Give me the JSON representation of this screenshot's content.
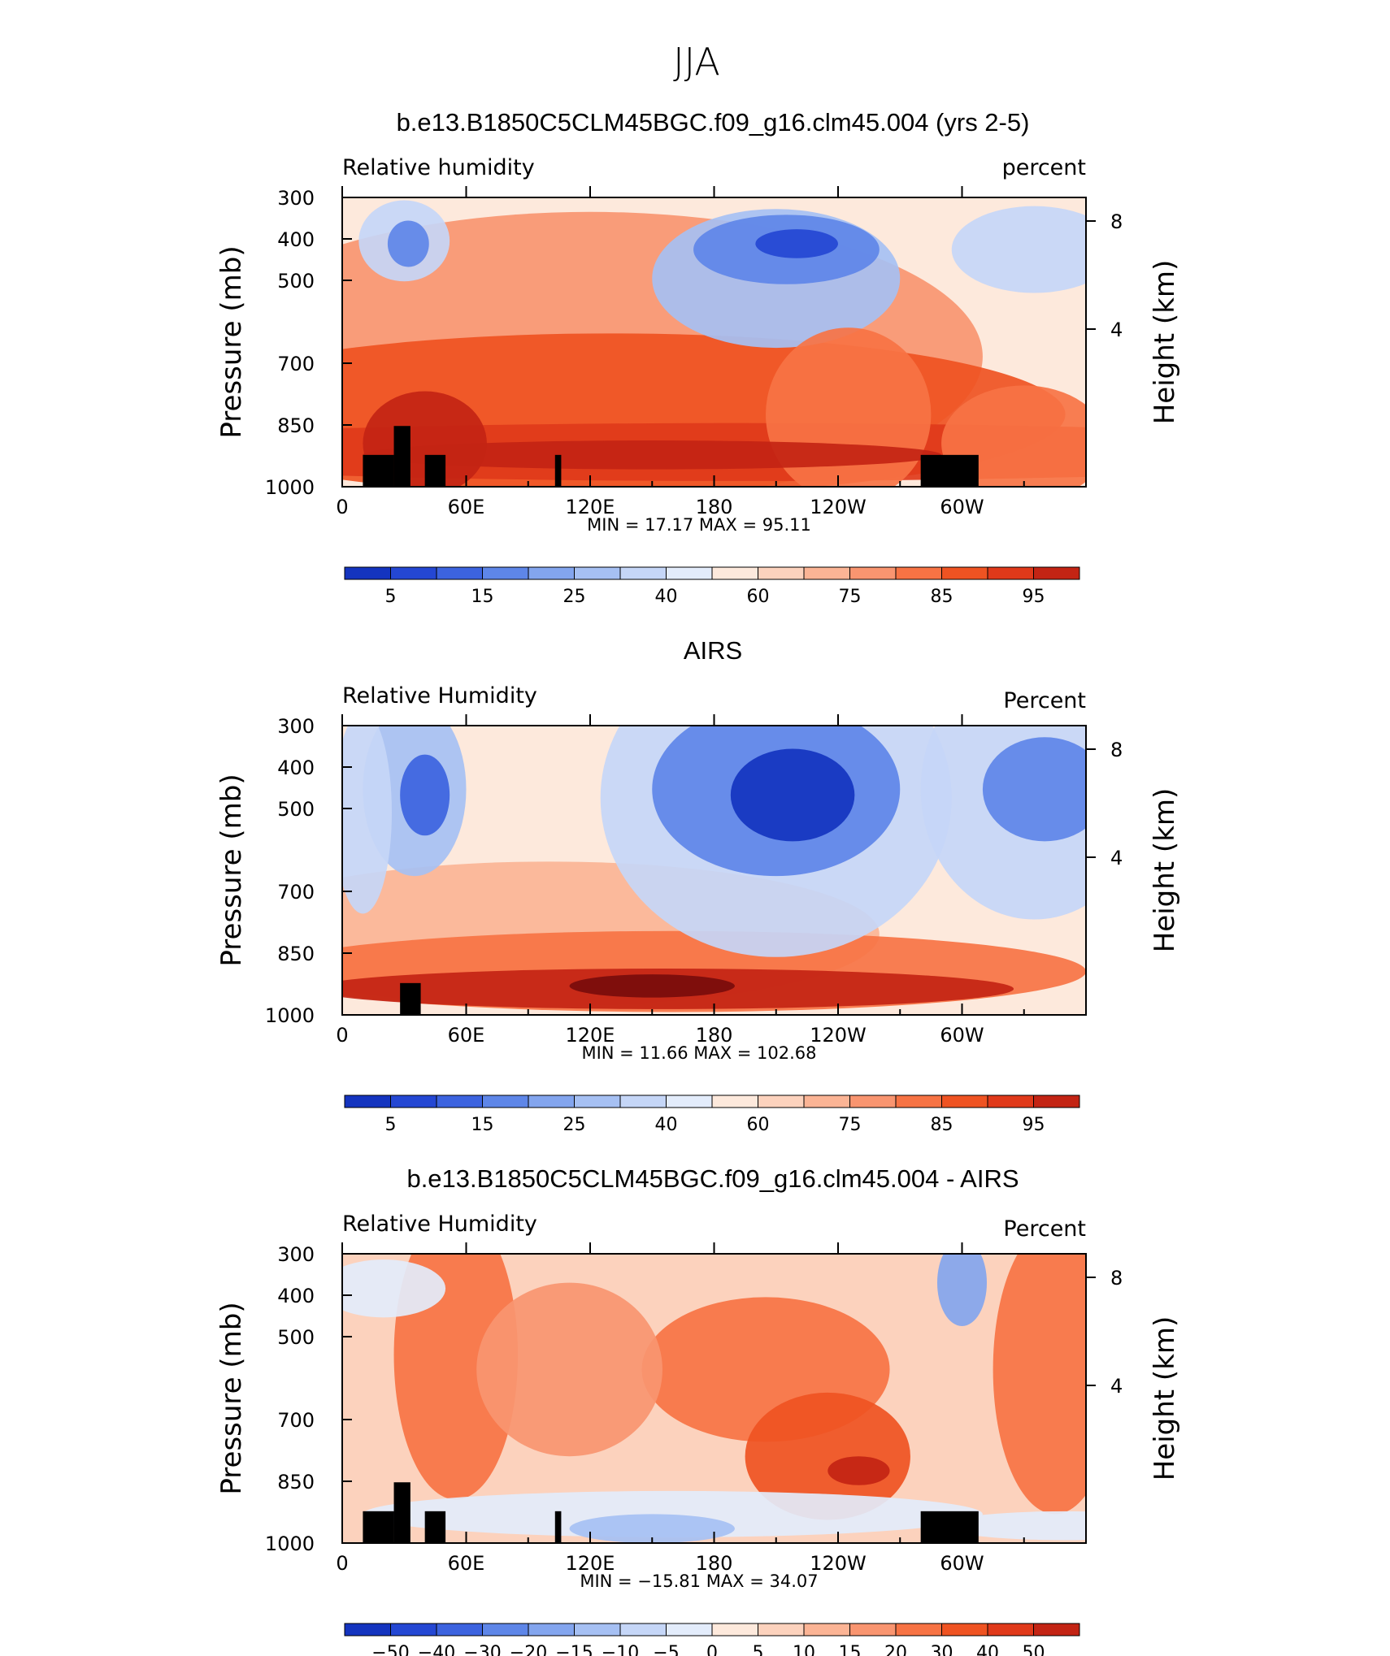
{
  "page_title": "JJA",
  "colors": {
    "scale_positive": [
      "#fde9dc",
      "#fcd2bd",
      "#fbb495",
      "#f99570",
      "#f77344",
      "#ef5322",
      "#e0391a",
      "#c32414",
      "#9e1610",
      "#780c0c"
    ],
    "scale_negative": [
      "#e3ecfb",
      "#c5d6f7",
      "#a6c0f3",
      "#83a5ee",
      "#5e86e8",
      "#3c63df",
      "#2447d3",
      "#1434bf",
      "#0b25a4",
      "#051a86"
    ],
    "land_mask": "#000000"
  },
  "chart_data": [
    {
      "type": "heatmap",
      "title": "b.e13.B1850C5CLM45BGC.f09_g16.clm45.004 (yrs 2-5)",
      "left_label": "Relative humidity",
      "right_label": "percent",
      "ylabel": "Pressure (mb)",
      "ylabel_right": "Height (km)",
      "yticks": [
        "300",
        "400",
        "500",
        "700",
        "850",
        "1000"
      ],
      "yticks_right": [
        "8",
        "4"
      ],
      "xticks": [
        "0",
        "60E",
        "120E",
        "180",
        "120W",
        "60W"
      ],
      "stats_label": "MIN =   17.17   MAX =   95.11",
      "colorbar_labels": [
        "5",
        "15",
        "25",
        "40",
        "60",
        "75",
        "85",
        "95"
      ],
      "colorbar_levels": 16,
      "min": 17.17,
      "max": 95.11
    },
    {
      "type": "heatmap",
      "title": "AIRS",
      "left_label": "Relative Humidity",
      "right_label": "Percent",
      "ylabel": "Pressure (mb)",
      "ylabel_right": "Height (km)",
      "yticks": [
        "300",
        "400",
        "500",
        "700",
        "850",
        "1000"
      ],
      "yticks_right": [
        "8",
        "4"
      ],
      "xticks": [
        "0",
        "60E",
        "120E",
        "180",
        "120W",
        "60W"
      ],
      "stats_label": "MIN =   11.66   MAX = 102.68",
      "colorbar_labels": [
        "5",
        "15",
        "25",
        "40",
        "60",
        "75",
        "85",
        "95"
      ],
      "colorbar_levels": 16,
      "min": 11.66,
      "max": 102.68
    },
    {
      "type": "heatmap",
      "title": "b.e13.B1850C5CLM45BGC.f09_g16.clm45.004 - AIRS",
      "left_label": "Relative Humidity",
      "right_label": "Percent",
      "ylabel": "Pressure (mb)",
      "ylabel_right": "Height (km)",
      "yticks": [
        "300",
        "400",
        "500",
        "700",
        "850",
        "1000"
      ],
      "yticks_right": [
        "8",
        "4"
      ],
      "xticks": [
        "0",
        "60E",
        "120E",
        "180",
        "120W",
        "60W"
      ],
      "stats_label": "MIN = −15.81   MAX =   34.07",
      "colorbar_labels": [
        "−50",
        "−40",
        "−30",
        "−20",
        "−15",
        "−10",
        "−5",
        "0",
        "5",
        "10",
        "15",
        "20",
        "30",
        "40",
        "50"
      ],
      "colorbar_levels": 16,
      "min": -15.81,
      "max": 34.07
    }
  ]
}
